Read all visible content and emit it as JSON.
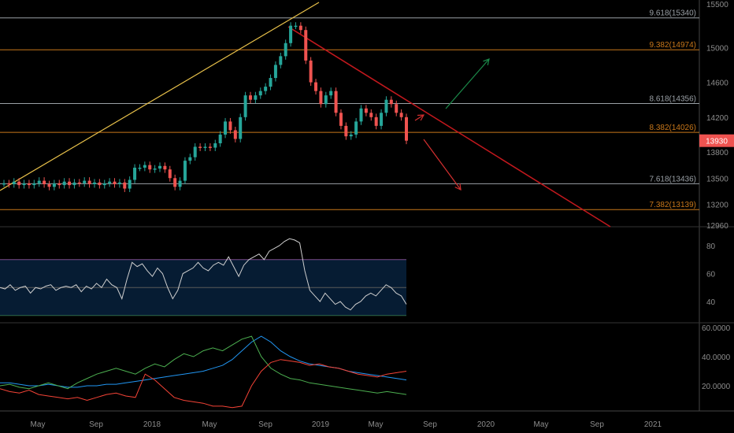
{
  "chart_data": [
    {
      "type": "candlestick",
      "x_axis_ticks": [
        "May",
        "Sep",
        "2018",
        "May",
        "Sep",
        "2019",
        "May",
        "Sep",
        "2020",
        "May",
        "Sep",
        "2021"
      ],
      "y_ticks": [
        15500,
        15000,
        14600,
        14200,
        13800,
        13500,
        13200,
        12960
      ],
      "last_price": "13930",
      "candles_approx_close": [
        [
          0,
          13440
        ],
        [
          1,
          13430
        ],
        [
          2,
          13460
        ],
        [
          3,
          13420
        ],
        [
          4,
          13440
        ],
        [
          5,
          13420
        ],
        [
          6,
          13440
        ],
        [
          7,
          13470
        ],
        [
          8,
          13430
        ],
        [
          9,
          13400
        ],
        [
          10,
          13440
        ],
        [
          11,
          13420
        ],
        [
          12,
          13460
        ],
        [
          13,
          13420
        ],
        [
          14,
          13450
        ],
        [
          15,
          13440
        ],
        [
          16,
          13470
        ],
        [
          17,
          13430
        ],
        [
          18,
          13450
        ],
        [
          19,
          13420
        ],
        [
          20,
          13440
        ],
        [
          21,
          13460
        ],
        [
          22,
          13430
        ],
        [
          23,
          13450
        ],
        [
          24,
          13380
        ],
        [
          25,
          13480
        ],
        [
          26,
          13620
        ],
        [
          27,
          13620
        ],
        [
          28,
          13650
        ],
        [
          29,
          13600
        ],
        [
          30,
          13610
        ],
        [
          31,
          13640
        ],
        [
          32,
          13600
        ],
        [
          33,
          13500
        ],
        [
          34,
          13400
        ],
        [
          35,
          13470
        ],
        [
          36,
          13700
        ],
        [
          37,
          13740
        ],
        [
          38,
          13860
        ],
        [
          39,
          13850
        ],
        [
          40,
          13860
        ],
        [
          41,
          13850
        ],
        [
          42,
          13900
        ],
        [
          43,
          14000
        ],
        [
          44,
          14150
        ],
        [
          45,
          14050
        ],
        [
          46,
          13950
        ],
        [
          47,
          14200
        ],
        [
          48,
          14450
        ],
        [
          49,
          14400
        ],
        [
          50,
          14450
        ],
        [
          51,
          14500
        ],
        [
          52,
          14550
        ],
        [
          53,
          14650
        ],
        [
          54,
          14800
        ],
        [
          55,
          14900
        ],
        [
          56,
          15050
        ],
        [
          57,
          15250
        ],
        [
          58,
          15250
        ],
        [
          59,
          15200
        ],
        [
          60,
          14850
        ],
        [
          61,
          14600
        ],
        [
          62,
          14500
        ],
        [
          63,
          14350
        ],
        [
          64,
          14450
        ],
        [
          65,
          14500
        ],
        [
          66,
          14250
        ],
        [
          67,
          14100
        ],
        [
          68,
          13980
        ],
        [
          69,
          14000
        ],
        [
          70,
          14150
        ],
        [
          71,
          14300
        ],
        [
          72,
          14250
        ],
        [
          73,
          14200
        ],
        [
          74,
          14100
        ],
        [
          75,
          14250
        ],
        [
          76,
          14400
        ],
        [
          77,
          14350
        ],
        [
          78,
          14250
        ],
        [
          79,
          14200
        ],
        [
          80,
          13930
        ]
      ],
      "fib_levels": [
        {
          "label": "9.618(15340)",
          "value": 15340,
          "color": "#9aa0a6"
        },
        {
          "label": "9.382(14974)",
          "value": 14974,
          "color": "#c8771a"
        },
        {
          "label": "8.618(14356)",
          "value": 14356,
          "color": "#9aa0a6"
        },
        {
          "label": "8.382(14026)",
          "value": 14026,
          "color": "#c8771a"
        },
        {
          "label": "7.618(13436)",
          "value": 13436,
          "color": "#9aa0a6"
        },
        {
          "label": "7.382(13139)",
          "value": 13139,
          "color": "#c8771a"
        }
      ],
      "colors": {
        "up": "#26a69a",
        "down": "#ef5350",
        "trend": "#e8c14a",
        "downtrend": "#c2181d",
        "green_arrow": "#1b8a4a",
        "red_arrow": "#d32f2f"
      }
    },
    {
      "type": "line",
      "indicator": "oscillator",
      "y_ticks": [
        80,
        60,
        40
      ],
      "band": [
        30,
        70
      ],
      "values": [
        50,
        49,
        52,
        48,
        50,
        51,
        46,
        50,
        49,
        51,
        52,
        48,
        50,
        51,
        50,
        52,
        47,
        51,
        49,
        53,
        50,
        56,
        52,
        50,
        42,
        56,
        68,
        65,
        67,
        62,
        58,
        64,
        60,
        50,
        42,
        48,
        60,
        62,
        64,
        68,
        64,
        62,
        66,
        68,
        66,
        72,
        65,
        58,
        66,
        70,
        72,
        74,
        70,
        76,
        78,
        80,
        83,
        85,
        84,
        82,
        62,
        48,
        44,
        40,
        46,
        42,
        38,
        40,
        36,
        34,
        38,
        40,
        44,
        46,
        44,
        48,
        52,
        50,
        46,
        44,
        38
      ]
    },
    {
      "type": "line",
      "indicator": "dmi",
      "y_ticks": [
        "60.0000",
        "40.0000",
        "20.0000"
      ],
      "series": [
        {
          "color": "#2196f3",
          "values": [
            22,
            22,
            21,
            20,
            20,
            21,
            20,
            19,
            19,
            20,
            20,
            21,
            21,
            22,
            23,
            24,
            25,
            26,
            27,
            28,
            29,
            30,
            32,
            34,
            38,
            44,
            50,
            54,
            50,
            44,
            40,
            37,
            35,
            34,
            33,
            32,
            30,
            29,
            28,
            27,
            26,
            25,
            24
          ]
        },
        {
          "color": "#4caf50",
          "values": [
            20,
            21,
            19,
            18,
            20,
            22,
            20,
            18,
            22,
            25,
            28,
            30,
            32,
            30,
            28,
            32,
            35,
            33,
            38,
            42,
            40,
            44,
            46,
            44,
            48,
            52,
            54,
            40,
            32,
            28,
            25,
            24,
            22,
            21,
            20,
            19,
            18,
            17,
            16,
            15,
            16,
            15,
            14
          ]
        },
        {
          "color": "#f44336",
          "values": [
            18,
            16,
            15,
            17,
            14,
            13,
            12,
            11,
            12,
            10,
            12,
            14,
            15,
            13,
            12,
            28,
            24,
            18,
            12,
            10,
            9,
            8,
            6,
            6,
            5,
            6,
            20,
            30,
            36,
            38,
            37,
            36,
            34,
            35,
            33,
            32,
            30,
            28,
            27,
            26,
            28,
            29,
            30
          ]
        }
      ]
    }
  ]
}
